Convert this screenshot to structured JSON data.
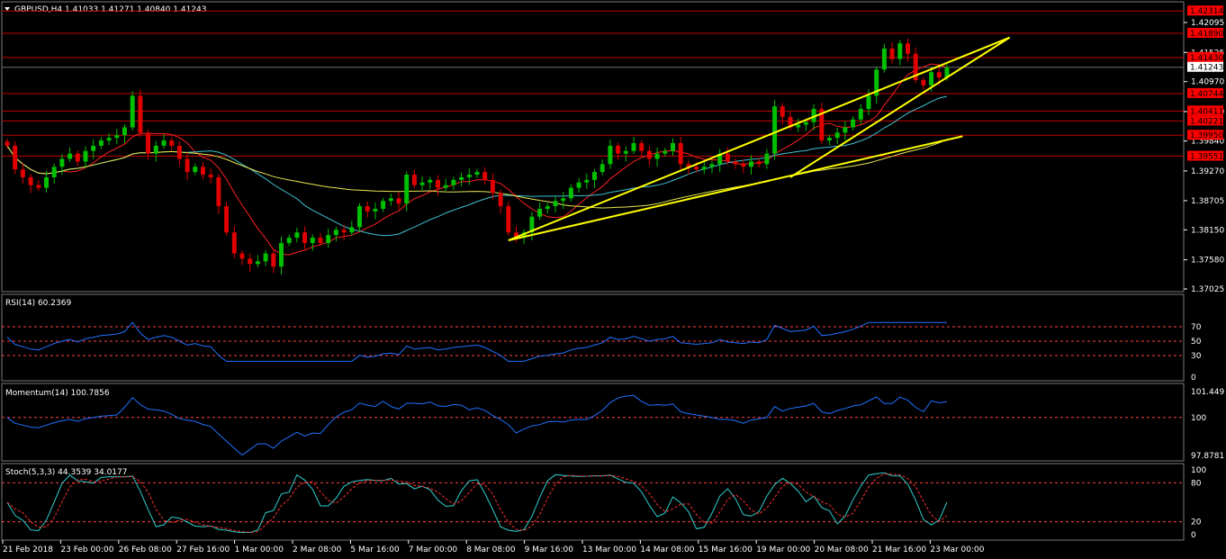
{
  "window": {
    "title": "GBPUSD,H4  1.41033 1.41271 1.40840 1.41243"
  },
  "colors": {
    "background": "#000000",
    "bull": "#00c000",
    "bear": "#e00000",
    "level_line": "#c00000",
    "level_box": "#ff0000",
    "trendline": "#ffff00",
    "ma_fast": "#ff2020",
    "ma_mid": "#40c0d0",
    "ma_slow": "#e8e850",
    "indicator": "#2070ff",
    "grid": "#ff4040",
    "stoch_signal": "#ff3030",
    "stoch_main": "#30d0d0"
  },
  "main_axis": {
    "ticks": [
      "1.42095",
      "1.41525",
      "1.40970",
      "1.40400",
      "1.39840",
      "1.39270",
      "1.38705",
      "1.38150",
      "1.37580",
      "1.37025"
    ],
    "current_price": "1.41243"
  },
  "levels": [
    "1.42314",
    "1.41890",
    "1.41430",
    "1.40744",
    "1.40411",
    "1.40221",
    "1.39950",
    "1.39551"
  ],
  "rsi": {
    "label": "RSI(14) 60.2369",
    "ticks": [
      "70",
      "50",
      "30",
      "0"
    ]
  },
  "momentum": {
    "label": "Momentum(14) 100.7856",
    "ticks": [
      "101.449",
      "100",
      "97.8781"
    ]
  },
  "stoch": {
    "label": "Stoch(5,3,3) 44.3539 34.0177",
    "ticks": [
      "100",
      "80",
      "20",
      "0"
    ]
  },
  "time_axis": [
    "21 Feb 2018",
    "23 Feb 00:00",
    "26 Feb 08:00",
    "27 Feb 16:00",
    "1 Mar 00:00",
    "2 Mar 08:00",
    "5 Mar 16:00",
    "7 Mar 00:00",
    "8 Mar 08:00",
    "9 Mar 16:00",
    "13 Mar 00:00",
    "14 Mar 08:00",
    "15 Mar 16:00",
    "19 Mar 00:00",
    "20 Mar 08:00",
    "21 Mar 16:00",
    "23 Mar 00:00"
  ],
  "chart_data": {
    "type": "candlestick",
    "symbol": "GBPUSD",
    "timeframe": "H4",
    "price_range": [
      1.3685,
      1.4235
    ],
    "closes": [
      1.3975,
      1.393,
      1.3915,
      1.39,
      1.3895,
      1.3915,
      1.3935,
      1.395,
      1.396,
      1.3945,
      1.3965,
      1.3975,
      1.3985,
      1.399,
      1.3995,
      1.401,
      1.407,
      1.4,
      1.396,
      1.3975,
      1.3985,
      1.3975,
      1.395,
      1.3925,
      1.3935,
      1.392,
      1.3915,
      1.386,
      1.381,
      1.377,
      1.376,
      1.375,
      1.3755,
      1.377,
      1.3745,
      1.379,
      1.38,
      1.381,
      1.379,
      1.38,
      1.379,
      1.3805,
      1.3815,
      1.381,
      1.382,
      1.386,
      1.385,
      1.3855,
      1.387,
      1.3875,
      1.3865,
      1.392,
      1.39,
      1.3905,
      1.391,
      1.3895,
      1.39,
      1.391,
      1.3915,
      1.392,
      1.3925,
      1.391,
      1.3885,
      1.386,
      1.381,
      1.38,
      1.381,
      1.384,
      1.3855,
      1.386,
      1.387,
      1.3875,
      1.3895,
      1.3905,
      1.391,
      1.3925,
      1.394,
      1.3975,
      1.396,
      1.3965,
      1.398,
      1.3965,
      1.395,
      1.396,
      1.3965,
      1.398,
      1.394,
      1.3935,
      1.393,
      1.3935,
      1.394,
      1.396,
      1.3945,
      1.394,
      1.3935,
      1.3945,
      1.394,
      1.396,
      1.405,
      1.403,
      1.401,
      1.4015,
      1.402,
      1.4045,
      1.3985,
      1.399,
      1.4,
      1.401,
      1.4025,
      1.4045,
      1.407,
      1.412,
      1.416,
      1.414,
      1.417,
      1.415,
      1.41,
      1.409,
      1.4115,
      1.4105,
      1.4124
    ],
    "series": [
      {
        "name": "RSI(14)",
        "last": 60.2369
      },
      {
        "name": "Momentum(14)",
        "last": 100.7856
      },
      {
        "name": "Stoch(5,3,3)",
        "last_main": 44.3539,
        "last_signal": 34.0177
      }
    ]
  }
}
